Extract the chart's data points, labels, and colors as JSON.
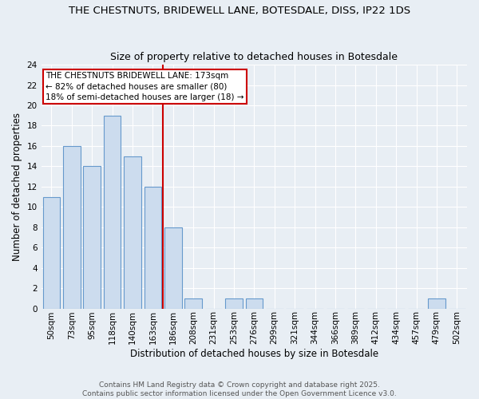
{
  "title1": "THE CHESTNUTS, BRIDEWELL LANE, BOTESDALE, DISS, IP22 1DS",
  "title2": "Size of property relative to detached houses in Botesdale",
  "xlabel": "Distribution of detached houses by size in Botesdale",
  "ylabel": "Number of detached properties",
  "categories": [
    "50sqm",
    "73sqm",
    "95sqm",
    "118sqm",
    "140sqm",
    "163sqm",
    "186sqm",
    "208sqm",
    "231sqm",
    "253sqm",
    "276sqm",
    "299sqm",
    "321sqm",
    "344sqm",
    "366sqm",
    "389sqm",
    "412sqm",
    "434sqm",
    "457sqm",
    "479sqm",
    "502sqm"
  ],
  "values": [
    11,
    16,
    14,
    19,
    15,
    12,
    8,
    1,
    0,
    1,
    1,
    0,
    0,
    0,
    0,
    0,
    0,
    0,
    0,
    1,
    0
  ],
  "bar_color": "#ccdcee",
  "bar_edge_color": "#6699cc",
  "red_line_x": 5.5,
  "ylim": [
    0,
    24
  ],
  "yticks": [
    0,
    2,
    4,
    6,
    8,
    10,
    12,
    14,
    16,
    18,
    20,
    22,
    24
  ],
  "annotation_title": "THE CHESTNUTS BRIDEWELL LANE: 173sqm",
  "annotation_line1": "← 82% of detached houses are smaller (80)",
  "annotation_line2": "18% of semi-detached houses are larger (18) →",
  "annotation_box_facecolor": "#ffffff",
  "annotation_box_edgecolor": "#cc0000",
  "footer1": "Contains HM Land Registry data © Crown copyright and database right 2025.",
  "footer2": "Contains public sector information licensed under the Open Government Licence v3.0.",
  "bg_color": "#e8eef4",
  "grid_color": "#ffffff",
  "title1_fontsize": 9.5,
  "title2_fontsize": 9.0,
  "xlabel_fontsize": 8.5,
  "ylabel_fontsize": 8.5,
  "tick_fontsize": 7.5,
  "annot_fontsize": 7.5,
  "footer_fontsize": 6.5
}
